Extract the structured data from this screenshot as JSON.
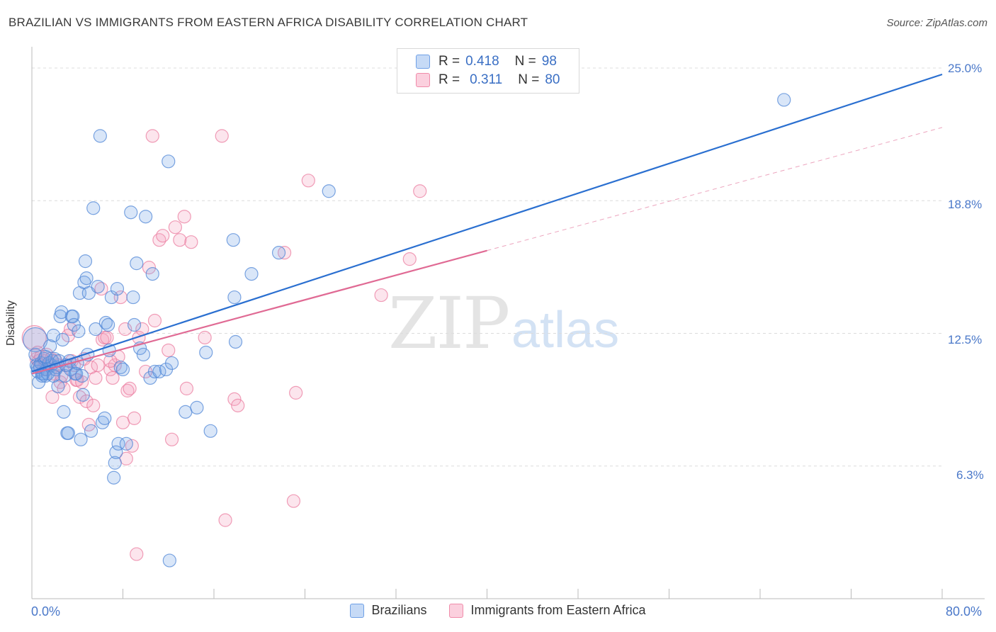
{
  "header": {
    "title": "BRAZILIAN VS IMMIGRANTS FROM EASTERN AFRICA DISABILITY CORRELATION CHART",
    "source": "Source: ZipAtlas.com"
  },
  "watermark": {
    "zip": "ZIP",
    "atlas": "atlas"
  },
  "legend_top": {
    "rows": [
      {
        "r_label": "R =",
        "r_value": "0.418",
        "n_label": "N =",
        "n_value": "98",
        "color": "#6fa0e6"
      },
      {
        "r_label": "R =",
        "r_value": "0.311",
        "n_label": "N =",
        "n_value": "80",
        "color": "#f08caa"
      }
    ]
  },
  "legend_bottom": {
    "items": [
      {
        "label": "Brazilians",
        "color": "#6fa0e6"
      },
      {
        "label": "Immigrants from Eastern Africa",
        "color": "#f08caa"
      }
    ]
  },
  "axes": {
    "ylabel": "Disability",
    "x_min_label": "0.0%",
    "x_max_label": "80.0%",
    "y_ticks": [
      "25.0%",
      "18.8%",
      "12.5%",
      "6.3%"
    ]
  },
  "colors": {
    "blue": "#5b8fde",
    "blue_line": "#2a6fd0",
    "pink": "#ee86a6",
    "pink_line": "#e06a94",
    "grid": "#dcdcdc"
  },
  "chart_data": {
    "type": "scatter",
    "xlim": [
      0,
      80
    ],
    "ylim": [
      0,
      25.0
    ],
    "x_unit": "%",
    "y_unit": "%",
    "grid": true,
    "legend": "top-center",
    "series": [
      {
        "name": "Brazilians",
        "r": 0.418,
        "n": 98,
        "trend": {
          "x": [
            0,
            80
          ],
          "y": [
            10.7,
            24.7
          ],
          "style": "solid"
        },
        "points": [
          [
            0.3,
            12.2
          ],
          [
            0.4,
            11.0
          ],
          [
            0.5,
            10.7
          ],
          [
            0.6,
            10.2
          ],
          [
            0.7,
            10.9
          ],
          [
            0.8,
            11.1
          ],
          [
            0.9,
            10.6
          ],
          [
            1.0,
            10.6
          ],
          [
            1.1,
            11.3
          ],
          [
            1.2,
            10.5
          ],
          [
            1.3,
            10.8
          ],
          [
            1.4,
            10.6
          ],
          [
            1.5,
            11.1
          ],
          [
            1.6,
            11.9
          ],
          [
            1.7,
            11.0
          ],
          [
            1.8,
            11.2
          ],
          [
            1.9,
            12.4
          ],
          [
            2.0,
            11.3
          ],
          [
            2.1,
            10.8
          ],
          [
            2.2,
            10.9
          ],
          [
            2.3,
            10.0
          ],
          [
            2.4,
            11.2
          ],
          [
            2.5,
            13.3
          ],
          [
            2.6,
            13.5
          ],
          [
            2.8,
            8.8
          ],
          [
            2.9,
            10.5
          ],
          [
            3.0,
            11.0
          ],
          [
            3.1,
            7.8
          ],
          [
            3.2,
            7.8
          ],
          [
            3.3,
            11.2
          ],
          [
            3.4,
            10.8
          ],
          [
            3.5,
            13.3
          ],
          [
            3.6,
            13.3
          ],
          [
            3.7,
            12.9
          ],
          [
            3.8,
            10.6
          ],
          [
            3.9,
            10.6
          ],
          [
            4.0,
            11.1
          ],
          [
            4.1,
            12.6
          ],
          [
            4.2,
            14.4
          ],
          [
            4.3,
            7.5
          ],
          [
            4.4,
            10.5
          ],
          [
            4.5,
            9.6
          ],
          [
            4.6,
            14.9
          ],
          [
            4.7,
            15.9
          ],
          [
            4.8,
            15.1
          ],
          [
            5.0,
            14.4
          ],
          [
            5.2,
            7.9
          ],
          [
            5.4,
            18.4
          ],
          [
            5.6,
            12.7
          ],
          [
            5.8,
            14.7
          ],
          [
            6.0,
            21.8
          ],
          [
            6.2,
            8.3
          ],
          [
            6.4,
            8.5
          ],
          [
            6.5,
            13.0
          ],
          [
            6.7,
            12.9
          ],
          [
            6.8,
            11.7
          ],
          [
            7.0,
            14.2
          ],
          [
            7.2,
            5.7
          ],
          [
            7.3,
            6.4
          ],
          [
            7.4,
            6.9
          ],
          [
            7.5,
            14.6
          ],
          [
            7.6,
            7.3
          ],
          [
            7.8,
            10.9
          ],
          [
            8.0,
            10.8
          ],
          [
            8.3,
            7.3
          ],
          [
            8.7,
            18.2
          ],
          [
            8.9,
            14.2
          ],
          [
            9.0,
            12.9
          ],
          [
            9.2,
            15.8
          ],
          [
            9.5,
            11.8
          ],
          [
            9.8,
            11.5
          ],
          [
            10.0,
            18.0
          ],
          [
            10.4,
            10.4
          ],
          [
            10.6,
            15.3
          ],
          [
            10.8,
            10.7
          ],
          [
            11.2,
            10.7
          ],
          [
            11.8,
            10.8
          ],
          [
            12.0,
            20.6
          ],
          [
            12.1,
            1.8
          ],
          [
            12.3,
            11.1
          ],
          [
            13.5,
            8.8
          ],
          [
            14.5,
            9.0
          ],
          [
            15.3,
            11.6
          ],
          [
            15.7,
            7.9
          ],
          [
            17.9,
            12.1
          ],
          [
            17.8,
            14.2
          ],
          [
            17.7,
            16.9
          ],
          [
            19.3,
            15.3
          ],
          [
            21.7,
            16.3
          ],
          [
            26.1,
            19.2
          ],
          [
            66.1,
            23.5
          ],
          [
            0.3,
            11.5
          ],
          [
            0.5,
            10.9
          ],
          [
            0.9,
            10.5
          ],
          [
            1.2,
            11.4
          ],
          [
            1.9,
            10.5
          ],
          [
            2.7,
            12.2
          ],
          [
            4.9,
            11.5
          ]
        ]
      },
      {
        "name": "Immigrants from Eastern Africa",
        "r": 0.311,
        "n": 80,
        "trend": {
          "x": [
            0,
            40
          ],
          "y": [
            10.6,
            16.4
          ],
          "style": "solid"
        },
        "trend_extension": {
          "x": [
            40,
            80
          ],
          "y": [
            16.4,
            22.2
          ],
          "style": "dashed"
        },
        "points": [
          [
            0.2,
            12.3
          ],
          [
            0.4,
            11.3
          ],
          [
            0.5,
            11.6
          ],
          [
            0.6,
            11.2
          ],
          [
            0.7,
            11.0
          ],
          [
            0.8,
            11.4
          ],
          [
            1.0,
            10.8
          ],
          [
            1.1,
            11.2
          ],
          [
            1.2,
            10.8
          ],
          [
            1.3,
            11.5
          ],
          [
            1.5,
            11.0
          ],
          [
            1.7,
            11.3
          ],
          [
            1.8,
            9.5
          ],
          [
            1.9,
            10.6
          ],
          [
            2.1,
            11.2
          ],
          [
            2.3,
            11.0
          ],
          [
            2.5,
            10.2
          ],
          [
            2.6,
            10.5
          ],
          [
            2.8,
            9.9
          ],
          [
            3.0,
            11.0
          ],
          [
            3.2,
            12.4
          ],
          [
            3.4,
            12.7
          ],
          [
            3.5,
            11.2
          ],
          [
            3.7,
            11.0
          ],
          [
            3.9,
            10.3
          ],
          [
            4.0,
            10.3
          ],
          [
            4.2,
            9.5
          ],
          [
            4.4,
            10.2
          ],
          [
            4.6,
            11.3
          ],
          [
            4.8,
            9.3
          ],
          [
            5.0,
            8.2
          ],
          [
            5.2,
            10.9
          ],
          [
            5.4,
            9.1
          ],
          [
            5.6,
            10.4
          ],
          [
            5.8,
            11.0
          ],
          [
            6.1,
            14.6
          ],
          [
            6.2,
            12.2
          ],
          [
            6.4,
            12.3
          ],
          [
            6.6,
            12.3
          ],
          [
            6.9,
            10.8
          ],
          [
            7.1,
            10.4
          ],
          [
            7.3,
            11.0
          ],
          [
            7.6,
            11.4
          ],
          [
            7.8,
            14.2
          ],
          [
            8.0,
            8.3
          ],
          [
            8.2,
            12.7
          ],
          [
            8.4,
            9.8
          ],
          [
            8.6,
            9.9
          ],
          [
            8.8,
            7.2
          ],
          [
            9.0,
            8.5
          ],
          [
            9.2,
            2.1
          ],
          [
            9.4,
            12.3
          ],
          [
            9.7,
            12.7
          ],
          [
            10.0,
            10.7
          ],
          [
            10.3,
            15.6
          ],
          [
            10.6,
            21.8
          ],
          [
            10.8,
            13.1
          ],
          [
            11.2,
            16.9
          ],
          [
            11.5,
            17.1
          ],
          [
            12.0,
            11.7
          ],
          [
            12.3,
            7.5
          ],
          [
            12.6,
            17.5
          ],
          [
            13.0,
            16.9
          ],
          [
            13.4,
            18.0
          ],
          [
            13.6,
            9.9
          ],
          [
            14.0,
            16.8
          ],
          [
            15.2,
            12.3
          ],
          [
            16.7,
            21.8
          ],
          [
            17.0,
            3.7
          ],
          [
            17.8,
            9.4
          ],
          [
            18.1,
            9.1
          ],
          [
            22.2,
            16.3
          ],
          [
            23.0,
            4.6
          ],
          [
            23.2,
            9.7
          ],
          [
            24.3,
            19.7
          ],
          [
            30.7,
            14.3
          ],
          [
            33.2,
            16.0
          ],
          [
            34.1,
            19.2
          ],
          [
            8.3,
            6.6
          ],
          [
            6.9,
            11.2
          ]
        ]
      }
    ]
  }
}
